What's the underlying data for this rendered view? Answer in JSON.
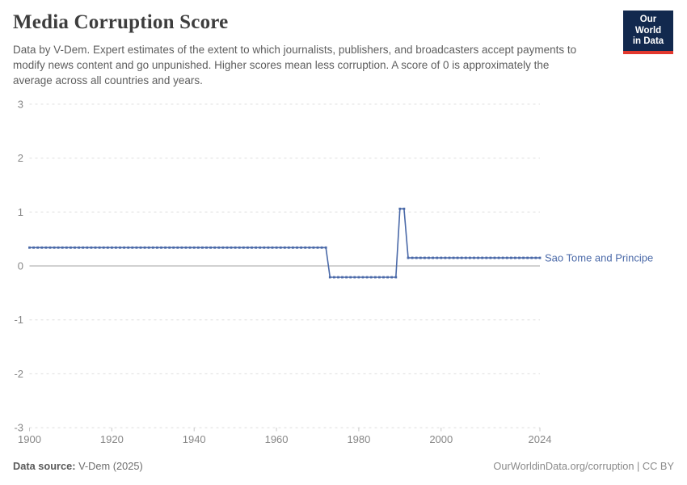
{
  "header": {
    "title": "Media Corruption Score",
    "subtitle": "Data by V-Dem. Expert estimates of the extent to which journalists, publishers, and broadcasters accept payments to modify news content and go unpunished. Higher scores mean less corruption. A score of 0 is approximately the average across all countries and years.",
    "logo": {
      "line1": "Our World",
      "line2": "in Data"
    }
  },
  "colors": {
    "line": "#4a69a8",
    "logo_bg": "#12294e",
    "logo_stripe": "#e2382e",
    "gridline": "#dedede",
    "zero_line": "#a3a3a3",
    "axis_text": "#878787"
  },
  "chart_data": {
    "type": "line",
    "title": "Media Corruption Score",
    "xlabel": "",
    "ylabel": "",
    "xlim": [
      1900,
      2024
    ],
    "ylim": [
      -3,
      3
    ],
    "xticks": [
      1900,
      1920,
      1940,
      1960,
      1980,
      2000,
      2024
    ],
    "yticks": [
      3,
      2,
      1,
      0,
      -1,
      -2,
      -3
    ],
    "grid": "horizontal dashed gridlines, solid zero line, no vertical gridlines",
    "legend_position": "end-of-line label at right",
    "series": [
      {
        "name": "Sao Tome and Principe",
        "color": "#4a69a8",
        "marker": "small square, one per year",
        "segments": [
          {
            "from": 1900,
            "to": 1972,
            "value": 0.34
          },
          {
            "from": 1973,
            "to": 1989,
            "value": -0.21
          },
          {
            "from": 1990,
            "to": 1991,
            "value": 1.06
          },
          {
            "from": 1992,
            "to": 2024,
            "value": 0.15
          }
        ]
      }
    ]
  },
  "footer": {
    "source_label": "Data source:",
    "source_value": "V-Dem (2025)",
    "attribution": "OurWorldinData.org/corruption | CC BY"
  }
}
